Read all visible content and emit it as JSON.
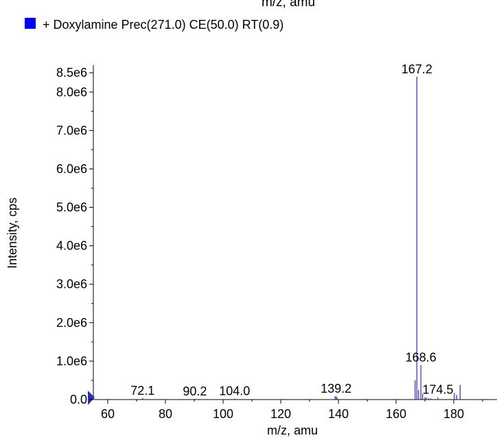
{
  "chart_data": {
    "type": "bar",
    "top_cut_label": "m/z, amu",
    "legend": {
      "placement": "top-left",
      "color": "#0000ff",
      "label": "+ Doxylamine Prec(271.0) CE(50.0) RT(0.9)"
    },
    "xlabel": "m/z, amu",
    "ylabel": "Intensity, cps",
    "xlim": [
      55,
      195
    ],
    "ylim": [
      0,
      8700000
    ],
    "x_ticks": [
      60,
      80,
      100,
      120,
      140,
      160,
      180
    ],
    "x_tick_labels": [
      "60",
      "80",
      "100",
      "120",
      "140",
      "160",
      "180"
    ],
    "y_ticks": [
      0,
      1000000,
      2000000,
      3000000,
      4000000,
      5000000,
      6000000,
      7000000,
      8000000,
      8500000
    ],
    "y_tick_labels": [
      "0.0",
      "1.0e6",
      "2.0e6",
      "3.0e6",
      "4.0e6",
      "5.0e6",
      "6.0e6",
      "7.0e6",
      "8.0e6",
      "8.5e6"
    ],
    "series_color": "#2a2acc",
    "peaks": [
      {
        "mz": 72.1,
        "intensity": 40000
      },
      {
        "mz": 90.2,
        "intensity": 20000
      },
      {
        "mz": 104.0,
        "intensity": 25000
      },
      {
        "mz": 138.8,
        "intensity": 80000
      },
      {
        "mz": 139.2,
        "intensity": 90000
      },
      {
        "mz": 139.6,
        "intensity": 50000
      },
      {
        "mz": 166.6,
        "intensity": 500000
      },
      {
        "mz": 167.2,
        "intensity": 8400000
      },
      {
        "mz": 167.8,
        "intensity": 250000
      },
      {
        "mz": 168.6,
        "intensity": 900000
      },
      {
        "mz": 169.2,
        "intensity": 150000
      },
      {
        "mz": 170.0,
        "intensity": 60000
      },
      {
        "mz": 170.5,
        "intensity": 50000
      },
      {
        "mz": 171.2,
        "intensity": 40000
      },
      {
        "mz": 172.0,
        "intensity": 30000
      },
      {
        "mz": 174.5,
        "intensity": 60000
      },
      {
        "mz": 180.2,
        "intensity": 170000
      },
      {
        "mz": 181.0,
        "intensity": 120000
      },
      {
        "mz": 182.2,
        "intensity": 380000
      }
    ],
    "peak_labels": [
      {
        "text": "72.1",
        "mz": 72.1,
        "intensity": 40000
      },
      {
        "text": "90.2",
        "mz": 90.2,
        "intensity": 20000
      },
      {
        "text": "104.0",
        "mz": 104.0,
        "intensity": 25000
      },
      {
        "text": "139.2",
        "mz": 139.2,
        "intensity": 90000
      },
      {
        "text": "167.2",
        "mz": 167.2,
        "intensity": 8400000
      },
      {
        "text": "168.6",
        "mz": 168.6,
        "intensity": 900000
      },
      {
        "text": "174.5",
        "mz": 174.5,
        "intensity": 60000
      }
    ],
    "grid": false
  }
}
